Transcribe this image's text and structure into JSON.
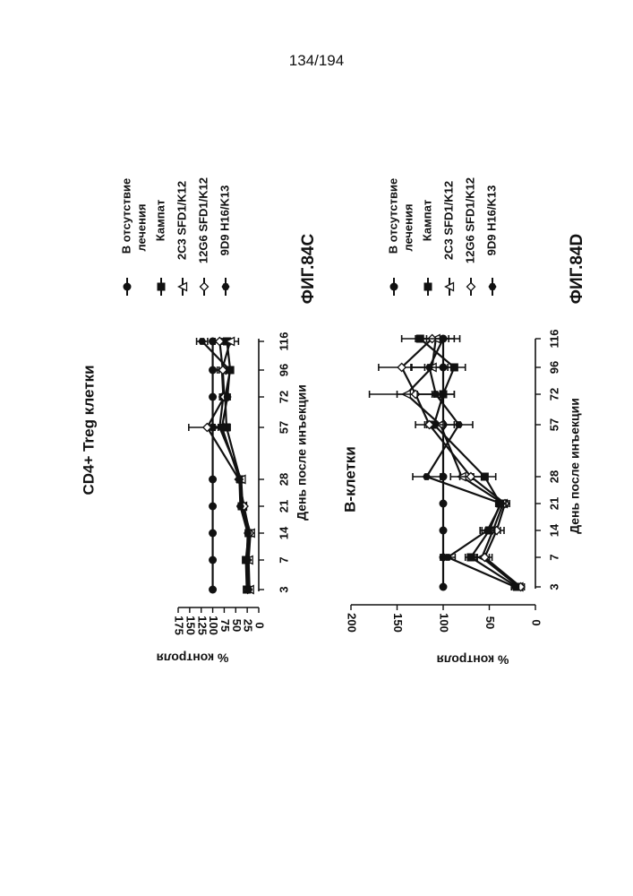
{
  "page_number": "134/194",
  "chart_data": [
    {
      "figure_label": "ФИГ.84C",
      "title": "CD4+ Treg клетки",
      "type": "line",
      "xlabel": "День после инъекции",
      "ylabel": "% контроля",
      "x_ticks": [
        "3",
        "7",
        "14",
        "21",
        "28",
        "57",
        "72",
        "96",
        "116"
      ],
      "y_ticks": [
        0,
        25,
        50,
        75,
        100,
        125,
        150,
        175
      ],
      "ylim": [
        0,
        175
      ],
      "legend_position": "right",
      "error_bars": true,
      "series": [
        {
          "name": "В отсутствие лечения",
          "marker": "filled-circle",
          "values": [
            100,
            100,
            100,
            100,
            100,
            100,
            100,
            100,
            100
          ],
          "errors": [
            0,
            0,
            0,
            0,
            0,
            0,
            0,
            0,
            0
          ]
        },
        {
          "name": "Кампат",
          "marker": "filled-square",
          "values": [
            26,
            28,
            22,
            37,
            40,
            70,
            73,
            62,
            69
          ],
          "errors": [
            4,
            3,
            4,
            4,
            5,
            8,
            5,
            6,
            8
          ]
        },
        {
          "name": "2C3 SFD1/K12",
          "marker": "open-triangle",
          "values": [
            20,
            22,
            18,
            35,
            38,
            85,
            77,
            80,
            62
          ],
          "errors": [
            3,
            3,
            3,
            4,
            5,
            10,
            8,
            10,
            18
          ]
        },
        {
          "name": "12G6 SFD1/K12",
          "marker": "open-diamond",
          "values": [
            24,
            25,
            20,
            32,
            43,
            112,
            75,
            78,
            85
          ],
          "errors": [
            3,
            3,
            3,
            4,
            5,
            40,
            8,
            8,
            10
          ]
        },
        {
          "name": "9D9 H16/K13",
          "marker": "filled-hexagon",
          "values": [
            22,
            26,
            24,
            40,
            42,
            80,
            68,
            63,
            123
          ],
          "errors": [
            3,
            3,
            3,
            4,
            5,
            8,
            6,
            6,
            12
          ]
        }
      ]
    },
    {
      "figure_label": "ФИГ.84D",
      "title": "В-клетки",
      "type": "line",
      "xlabel": "День после инъекции",
      "ylabel": "% контроля",
      "x_ticks": [
        "3",
        "7",
        "14",
        "21",
        "28",
        "57",
        "72",
        "96",
        "116"
      ],
      "y_ticks": [
        0,
        50,
        100,
        150,
        200
      ],
      "ylim": [
        0,
        200
      ],
      "legend_position": "right",
      "error_bars": true,
      "series": [
        {
          "name": "В отсутствие лечения",
          "marker": "filled-circle",
          "values": [
            100,
            100,
            100,
            100,
            100,
            100,
            100,
            100,
            100
          ],
          "errors": [
            0,
            0,
            0,
            0,
            0,
            0,
            0,
            0,
            0
          ]
        },
        {
          "name": "Кампат",
          "marker": "filled-square",
          "values": [
            20,
            70,
            50,
            38,
            55,
            110,
            100,
            88,
            125
          ],
          "errors": [
            4,
            6,
            8,
            5,
            12,
            10,
            12,
            12,
            20
          ]
        },
        {
          "name": "2C3 SFD1/K12",
          "marker": "open-triangle",
          "values": [
            18,
            58,
            46,
            35,
            80,
            103,
            140,
            112,
            108
          ],
          "errors": [
            4,
            8,
            8,
            5,
            12,
            15,
            40,
            22,
            20
          ]
        },
        {
          "name": "12G6 SFD1/K12",
          "marker": "open-diamond",
          "values": [
            16,
            55,
            42,
            33,
            70,
            115,
            130,
            145,
            112
          ],
          "errors": [
            4,
            8,
            8,
            5,
            12,
            15,
            20,
            25,
            18
          ]
        },
        {
          "name": "9D9 H16/K13",
          "marker": "filled-hexagon",
          "values": [
            22,
            95,
            52,
            37,
            118,
            83,
            108,
            115,
            100
          ],
          "errors": [
            4,
            8,
            8,
            5,
            15,
            15,
            20,
            20,
            18
          ]
        }
      ]
    }
  ]
}
